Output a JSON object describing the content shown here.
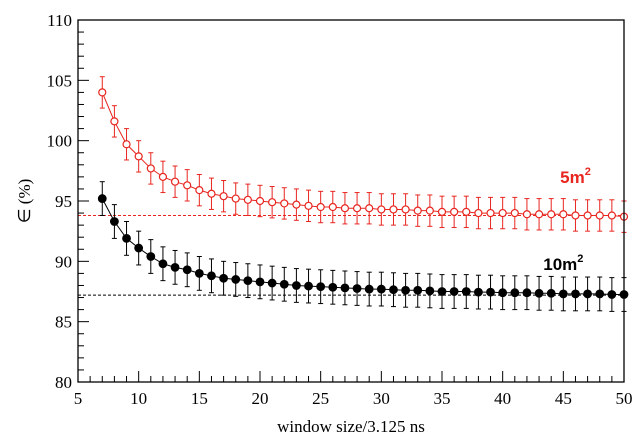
{
  "chart_data": {
    "type": "scatter",
    "xlabel": "window size/3.125 ns",
    "ylabel": "∈ (%)",
    "xlim": [
      5,
      50
    ],
    "ylim": [
      80,
      110
    ],
    "xticks": [
      5,
      10,
      15,
      20,
      25,
      30,
      35,
      40,
      45,
      50
    ],
    "yticks": [
      80,
      85,
      90,
      95,
      100,
      105,
      110
    ],
    "x_tick_labels": [
      "5",
      "10",
      "15",
      "20",
      "25",
      "30",
      "35",
      "40",
      "45",
      "50"
    ],
    "y_tick_labels": [
      "80",
      "85",
      "90",
      "95",
      "100",
      "105",
      "110"
    ],
    "grid": false,
    "series": [
      {
        "marker": "open-circle",
        "color": "#e8251f",
        "x": [
          7,
          8,
          9,
          10,
          11,
          12,
          13,
          14,
          15,
          16,
          17,
          18,
          19,
          20,
          21,
          22,
          23,
          24,
          25,
          26,
          27,
          28,
          29,
          30,
          31,
          32,
          33,
          34,
          35,
          36,
          37,
          38,
          39,
          40,
          41,
          42,
          43,
          44,
          45,
          46,
          47,
          48,
          49,
          50
        ],
        "y": [
          104.0,
          101.6,
          99.7,
          98.7,
          97.7,
          97.0,
          96.6,
          96.3,
          95.9,
          95.6,
          95.4,
          95.2,
          95.1,
          95.0,
          94.9,
          94.8,
          94.7,
          94.6,
          94.5,
          94.5,
          94.4,
          94.4,
          94.4,
          94.3,
          94.3,
          94.3,
          94.2,
          94.2,
          94.1,
          94.1,
          94.1,
          94.0,
          94.0,
          94.0,
          94.0,
          93.9,
          93.9,
          93.9,
          93.9,
          93.8,
          93.8,
          93.8,
          93.8,
          93.7
        ],
        "err": 1.3,
        "reference_y": 93.8
      },
      {
        "marker": "filled-circle",
        "color": "#000000",
        "x": [
          7,
          8,
          9,
          10,
          11,
          12,
          13,
          14,
          15,
          16,
          17,
          18,
          19,
          20,
          21,
          22,
          23,
          24,
          25,
          26,
          27,
          28,
          29,
          30,
          31,
          32,
          33,
          34,
          35,
          36,
          37,
          38,
          39,
          40,
          41,
          42,
          43,
          44,
          45,
          46,
          47,
          48,
          49,
          50
        ],
        "y": [
          95.2,
          93.3,
          91.9,
          91.1,
          90.4,
          89.8,
          89.5,
          89.3,
          89.0,
          88.8,
          88.6,
          88.5,
          88.4,
          88.3,
          88.2,
          88.1,
          88.0,
          87.95,
          87.9,
          87.85,
          87.8,
          87.75,
          87.7,
          87.7,
          87.65,
          87.6,
          87.6,
          87.55,
          87.5,
          87.5,
          87.5,
          87.45,
          87.45,
          87.4,
          87.4,
          87.4,
          87.35,
          87.35,
          87.3,
          87.3,
          87.3,
          87.3,
          87.25,
          87.25
        ],
        "err": 1.4,
        "reference_y": 87.2
      }
    ],
    "annotations": [
      {
        "base": "5m",
        "sup": "2",
        "color": "#e8251f",
        "x": 46,
        "y": 96.5
      },
      {
        "base": "10m",
        "sup": "2",
        "color": "#000000",
        "x": 45,
        "y": 89.3
      }
    ]
  }
}
